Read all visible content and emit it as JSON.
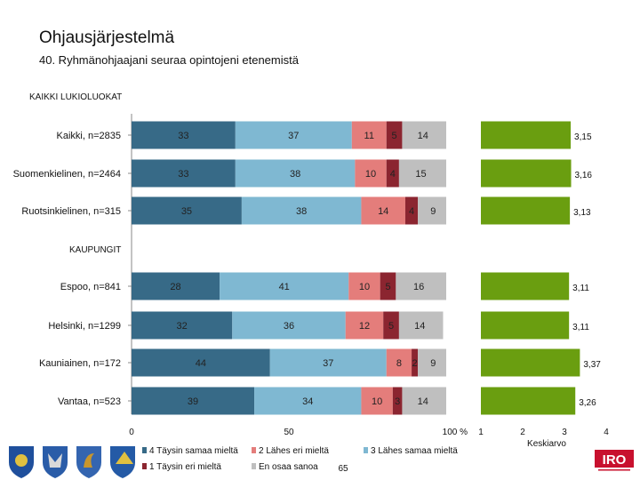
{
  "header": {
    "title": "Ohjausjärjestelmä",
    "subtitle": "40. Ryhmänohjaajani seuraa opintojeni etenemistä",
    "section_1": "KAIKKI LUKIOLUOKAT",
    "section_2": "KAUPUNGIT"
  },
  "colors": {
    "s4": "#376a87",
    "s3": "#7fb8d2",
    "s2": "#e47d7b",
    "s1": "#8b2530",
    "s0": "#bfbfbf",
    "mean": "#6a9e10"
  },
  "chart_data": {
    "type": "bar",
    "orientation": "horizontal-stacked",
    "categories": [
      "Kaikki, n=2835",
      "Suomenkielinen, n=2464",
      "Ruotsinkielinen, n=315",
      "Espoo, n=841",
      "Helsinki, n=1299",
      "Kauniainen, n=172",
      "Vantaa, n=523"
    ],
    "groups": [
      "KAIKKI LUKIOLUOKAT",
      "KAIKKI LUKIOLUOKAT",
      "KAIKKI LUKIOLUOKAT",
      "KAUPUNGIT",
      "KAUPUNGIT",
      "KAUPUNGIT",
      "KAUPUNGIT"
    ],
    "series": [
      {
        "name": "4 Täysin samaa mieltä",
        "values": [
          33,
          33,
          35,
          28,
          32,
          44,
          39
        ]
      },
      {
        "name": "3 Lähes samaa mieltä",
        "values": [
          37,
          38,
          38,
          41,
          36,
          37,
          34
        ]
      },
      {
        "name": "2 Lähes eri mieltä",
        "values": [
          11,
          10,
          14,
          10,
          12,
          8,
          10
        ]
      },
      {
        "name": "1 Täysin eri mieltä",
        "values": [
          5,
          4,
          4,
          5,
          5,
          2,
          3
        ]
      },
      {
        "name": "En osaa sanoa",
        "values": [
          14,
          15,
          9,
          16,
          14,
          9,
          14
        ]
      }
    ],
    "xlim": [
      0,
      100
    ],
    "xticks": [
      "0",
      "50",
      "100 %"
    ],
    "mean": {
      "values": [
        3.15,
        3.16,
        3.13,
        3.11,
        3.11,
        3.37,
        3.26
      ],
      "labels": [
        "3,15",
        "3,16",
        "3,13",
        "3,11",
        "3,11",
        "3,37",
        "3,26"
      ],
      "xlim": [
        1,
        4
      ],
      "xticks": [
        "1",
        "2",
        "3",
        "4"
      ],
      "xlabel": "Keskiarvo"
    },
    "legend_position": "bottom",
    "footnote": "65"
  },
  "logo": {
    "brand": "IRO"
  }
}
